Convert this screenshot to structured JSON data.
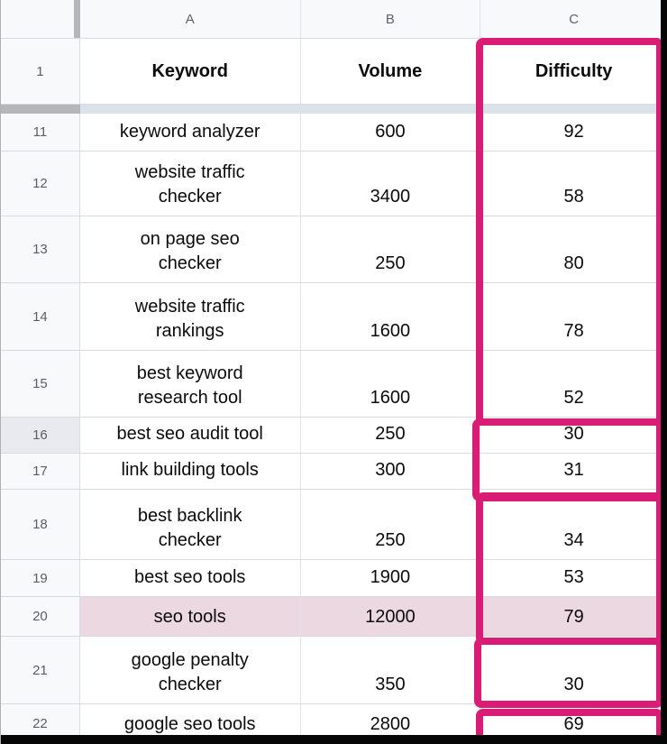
{
  "colors": {
    "annotation_pink": "#d91d76",
    "row_highlight": "#ecd8e1"
  },
  "sheet": {
    "column_letters": [
      "A",
      "B",
      "C"
    ],
    "header_row": {
      "number": "1",
      "keyword_label": "Keyword",
      "volume_label": "Volume",
      "difficulty_label": "Difficulty"
    },
    "rows": [
      {
        "number": "11",
        "keyword": "keyword analyzer",
        "volume": "600",
        "difficulty": "92"
      },
      {
        "number": "12",
        "keyword": "website traffic\nchecker",
        "volume": "3400",
        "difficulty": "58"
      },
      {
        "number": "13",
        "keyword": "on page seo\nchecker",
        "volume": "250",
        "difficulty": "80"
      },
      {
        "number": "14",
        "keyword": "website traffic\nrankings",
        "volume": "1600",
        "difficulty": "78"
      },
      {
        "number": "15",
        "keyword": "best keyword\nresearch tool",
        "volume": "1600",
        "difficulty": "52"
      },
      {
        "number": "16",
        "keyword": "best seo audit tool",
        "volume": "250",
        "difficulty": "30"
      },
      {
        "number": "17",
        "keyword": "link building tools",
        "volume": "300",
        "difficulty": "31"
      },
      {
        "number": "18",
        "keyword": "best backlink\nchecker",
        "volume": "250",
        "difficulty": "34"
      },
      {
        "number": "19",
        "keyword": "best seo tools",
        "volume": "1900",
        "difficulty": "53"
      },
      {
        "number": "20",
        "keyword": "seo tools",
        "volume": "12000",
        "difficulty": "79",
        "highlighted": true
      },
      {
        "number": "21",
        "keyword": "google penalty\nchecker",
        "volume": "350",
        "difficulty": "30"
      },
      {
        "number": "22",
        "keyword": "google seo tools",
        "volume": "2800",
        "difficulty": "69"
      }
    ]
  }
}
